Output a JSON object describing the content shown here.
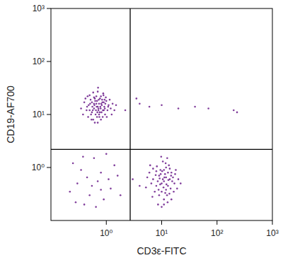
{
  "chart_data": {
    "type": "scatter",
    "x_label": "CD3ε-FITC",
    "y_label": "CD19-AF700",
    "log": true,
    "color": "#6a1b8a",
    "marker": "dot",
    "xlim": [
      0.1,
      1000
    ],
    "ylim": [
      0.1,
      1000
    ],
    "xticks": [
      {
        "value": 1,
        "label": "10⁰"
      },
      {
        "value": 10,
        "label": "10¹"
      },
      {
        "value": 100,
        "label": "10²"
      },
      {
        "value": 1000,
        "label": "10³"
      }
    ],
    "yticks": [
      {
        "value": 1,
        "label": "10⁰"
      },
      {
        "value": 10,
        "label": "10¹"
      },
      {
        "value": 100,
        "label": "10²"
      },
      {
        "value": 1000,
        "label": "10³"
      }
    ],
    "gates": {
      "x": 2.7,
      "y": 2.2
    },
    "x": [
      0.7,
      0.55,
      0.85,
      0.62,
      0.9,
      0.48,
      0.75,
      1.1,
      0.6,
      0.8,
      0.66,
      0.52,
      0.95,
      0.72,
      0.58,
      1.2,
      0.44,
      0.88,
      0.68,
      0.78,
      0.5,
      1.0,
      0.64,
      0.82,
      0.56,
      0.92,
      0.7,
      0.4,
      1.3,
      0.74,
      0.6,
      0.86,
      0.53,
      1.05,
      0.77,
      0.65,
      0.47,
      0.98,
      0.69,
      0.83,
      0.58,
      1.15,
      0.62,
      0.9,
      0.45,
      0.73,
      0.8,
      1.4,
      0.55,
      0.67,
      0.35,
      0.94,
      0.6,
      0.87,
      0.71,
      0.5,
      1.25,
      0.76,
      0.63,
      0.84,
      0.42,
      1.08,
      0.68,
      0.57,
      0.79,
      0.96,
      0.51,
      0.66,
      1.5,
      0.74,
      0.38,
      0.89,
      0.61,
      0.81,
      0.54,
      1.02,
      0.7,
      0.46,
      0.93,
      0.72,
      11,
      9,
      13,
      7,
      15,
      10,
      12,
      8,
      14,
      11,
      6,
      17,
      9.5,
      12.5,
      10.5,
      7.5,
      16,
      11.5,
      8.5,
      13.5,
      10,
      14.5,
      6.5,
      12,
      9,
      18,
      11,
      8,
      15.5,
      10.8,
      5.5,
      13,
      9.8,
      12.8,
      7,
      20,
      11.2,
      8.8,
      14,
      10.2,
      16.5,
      6.8,
      12.2,
      9.2,
      13.8,
      11.8,
      5.2,
      22,
      10,
      8.2,
      15,
      12,
      9.6,
      17.5,
      7.8,
      11,
      13.2,
      6.2,
      10.5,
      14.8,
      8.6,
      12.6,
      19,
      9.4,
      11.6,
      0.3,
      0.5,
      0.8,
      0.25,
      1.2,
      0.6,
      0.4,
      1.6,
      0.35,
      0.9,
      0.7,
      0.22,
      1.4,
      0.45,
      1.0,
      0.55,
      0.28,
      1.8,
      0.65,
      0.38,
      1.1,
      0.8,
      4,
      6,
      10,
      20,
      40,
      70,
      200,
      230,
      3.5,
      2.2,
      3,
      4
    ],
    "values": [
      14,
      11,
      17,
      20,
      12,
      15,
      9,
      15,
      13,
      22,
      16,
      19,
      10,
      12,
      8,
      13,
      12,
      25,
      18,
      14,
      23,
      18,
      10,
      11,
      14,
      14,
      27,
      17,
      16,
      16,
      16,
      9,
      10,
      12,
      20,
      12,
      9,
      21,
      11,
      15,
      26,
      19,
      7,
      17,
      14,
      19,
      8,
      12,
      17,
      14,
      13,
      13,
      21,
      12,
      32,
      12,
      10,
      11,
      18,
      19,
      20,
      14,
      9,
      12,
      13,
      16,
      16,
      22,
      15,
      10,
      10,
      23,
      15,
      16,
      8,
      9,
      7,
      22,
      19,
      13,
      0.55,
      0.7,
      0.45,
      0.6,
      0.8,
      0.35,
      1.0,
      0.45,
      0.6,
      0.25,
      0.8,
      0.5,
      0.9,
      0.3,
      1.3,
      0.35,
      0.65,
      0.75,
      0.55,
      1.1,
      0.5,
      0.4,
      0.5,
      0.65,
      0.3,
      0.9,
      0.2,
      0.85,
      0.55,
      0.42,
      0.65,
      0.8,
      1.6,
      0.22,
      0.95,
      0.6,
      0.65,
      0.38,
      0.95,
      0.85,
      0.35,
      0.28,
      0.48,
      0.62,
      0.32,
      1.2,
      0.42,
      0.5,
      0.18,
      1.05,
      0.25,
      0.38,
      0.75,
      0.75,
      0.72,
      0.9,
      0.58,
      1.1,
      0.6,
      0.7,
      0.2,
      1.5,
      0.4,
      0.48,
      0.33,
      0.5,
      0.3,
      0.8,
      1.2,
      0.4,
      1.5,
      0.2,
      0.7,
      0.9,
      0.25,
      0.55,
      0.35,
      1.1,
      0.65,
      1.8,
      0.45,
      0.22,
      0.3,
      0.18,
      1.6,
      0.6,
      0.38,
      16,
      14,
      15,
      13,
      14,
      13,
      12,
      11,
      20,
      12,
      0.6,
      0.45
    ]
  }
}
